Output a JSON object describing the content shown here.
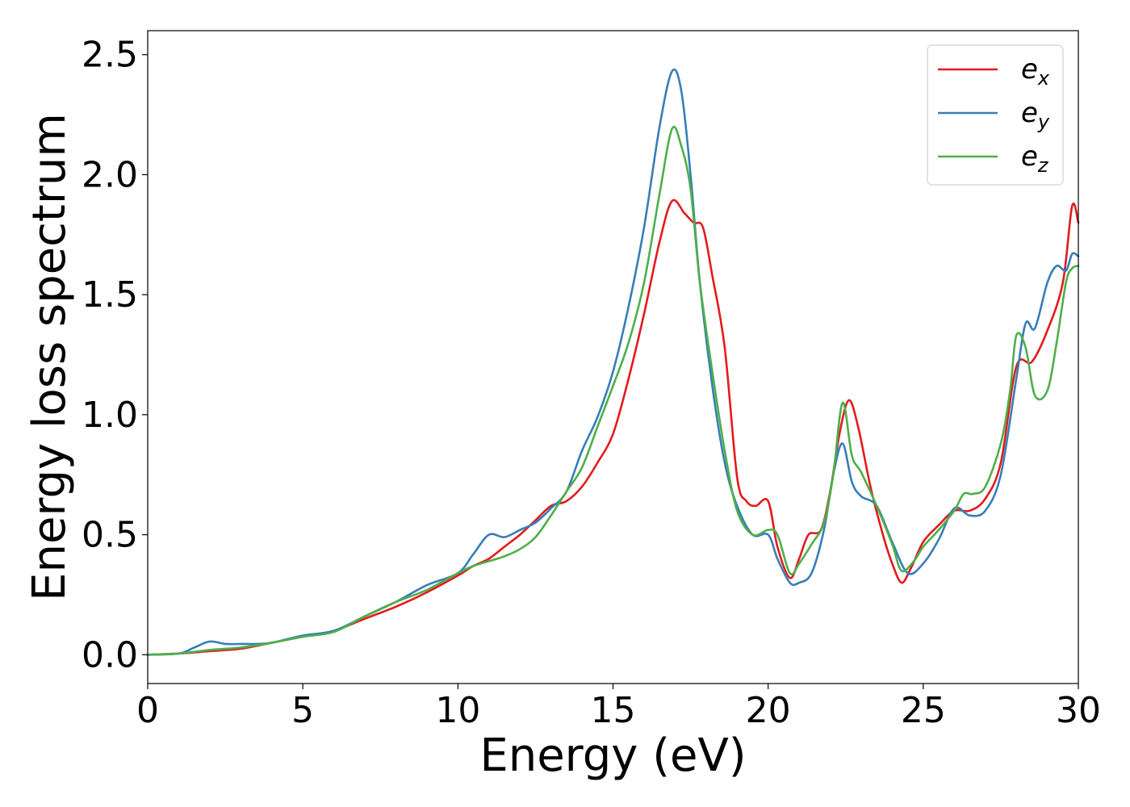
{
  "chart_data": {
    "type": "line",
    "title": "",
    "xlabel": "Energy (eV)",
    "ylabel": "Energy loss spectrum",
    "xlim": [
      0,
      30
    ],
    "ylim": [
      -0.12,
      2.6
    ],
    "xticks": [
      0,
      5,
      10,
      15,
      20,
      25,
      30
    ],
    "xtick_labels": [
      "0",
      "5",
      "10",
      "15",
      "20",
      "25",
      "30"
    ],
    "yticks": [
      0.0,
      0.5,
      1.0,
      1.5,
      2.0,
      2.5
    ],
    "ytick_labels": [
      "0.0",
      "0.5",
      "1.0",
      "1.5",
      "2.0",
      "2.5"
    ],
    "grid": false,
    "legend_position": "top-right",
    "series": [
      {
        "name": "e_x",
        "label_base": "e",
        "label_sub": "x",
        "color": "#e41a1c",
        "x": [
          0,
          1,
          2,
          3,
          4,
          5,
          6,
          7,
          8,
          9,
          10,
          10.5,
          11,
          11.5,
          12,
          12.5,
          13,
          13.5,
          14,
          14.5,
          15,
          15.5,
          16,
          16.5,
          16.9,
          17.3,
          17.6,
          17.9,
          18.2,
          18.6,
          19,
          19.3,
          19.6,
          20,
          20.3,
          20.7,
          21,
          21.3,
          21.7,
          22,
          22.3,
          22.6,
          22.9,
          23.3,
          23.7,
          24,
          24.3,
          24.6,
          25,
          25.5,
          26,
          26.5,
          27,
          27.5,
          28,
          28.5,
          29,
          29.5,
          29.8,
          30
        ],
        "y": [
          0.0,
          0.005,
          0.015,
          0.025,
          0.05,
          0.075,
          0.1,
          0.15,
          0.2,
          0.26,
          0.33,
          0.37,
          0.4,
          0.45,
          0.5,
          0.56,
          0.62,
          0.64,
          0.7,
          0.8,
          0.92,
          1.15,
          1.42,
          1.72,
          1.89,
          1.84,
          1.8,
          1.78,
          1.58,
          1.28,
          0.74,
          0.64,
          0.62,
          0.64,
          0.45,
          0.32,
          0.4,
          0.5,
          0.52,
          0.68,
          0.92,
          1.06,
          0.95,
          0.7,
          0.5,
          0.38,
          0.3,
          0.36,
          0.47,
          0.54,
          0.6,
          0.6,
          0.65,
          0.8,
          1.2,
          1.22,
          1.35,
          1.55,
          1.87,
          1.8
        ]
      },
      {
        "name": "e_y",
        "label_base": "e",
        "label_sub": "y",
        "color": "#377eb8",
        "x": [
          0,
          1,
          1.5,
          2,
          2.5,
          3,
          3.5,
          4,
          5,
          6,
          7,
          8,
          9,
          10,
          10.5,
          11,
          11.5,
          12,
          12.5,
          13,
          13.5,
          14,
          14.5,
          15,
          15.5,
          16,
          16.5,
          16.9,
          17.2,
          17.5,
          17.8,
          18.2,
          18.6,
          19,
          19.5,
          20,
          20.3,
          20.7,
          21,
          21.4,
          21.8,
          22.1,
          22.4,
          22.7,
          23,
          23.5,
          24,
          24.5,
          25,
          25.5,
          26,
          26.5,
          27,
          27.5,
          28,
          28.3,
          28.6,
          29,
          29.3,
          29.6,
          29.8,
          30
        ],
        "y": [
          0.0,
          0.005,
          0.03,
          0.055,
          0.045,
          0.045,
          0.045,
          0.05,
          0.08,
          0.1,
          0.16,
          0.22,
          0.29,
          0.34,
          0.42,
          0.5,
          0.49,
          0.52,
          0.55,
          0.61,
          0.68,
          0.85,
          0.99,
          1.18,
          1.45,
          1.78,
          2.2,
          2.43,
          2.35,
          2.0,
          1.55,
          1.12,
          0.8,
          0.62,
          0.5,
          0.5,
          0.4,
          0.3,
          0.3,
          0.34,
          0.52,
          0.75,
          0.88,
          0.72,
          0.66,
          0.62,
          0.47,
          0.34,
          0.38,
          0.48,
          0.61,
          0.58,
          0.6,
          0.75,
          1.15,
          1.38,
          1.36,
          1.55,
          1.62,
          1.6,
          1.67,
          1.66
        ]
      },
      {
        "name": "e_z",
        "label_base": "e",
        "label_sub": "z",
        "color": "#4daf4a",
        "x": [
          0,
          1,
          2,
          3,
          4,
          5,
          6,
          7,
          8,
          9,
          10,
          10.5,
          11,
          11.5,
          12,
          12.5,
          13,
          13.5,
          14,
          14.5,
          15,
          15.5,
          16,
          16.5,
          16.9,
          17.2,
          17.5,
          17.8,
          18.2,
          18.6,
          19,
          19.5,
          20,
          20.3,
          20.7,
          21,
          21.4,
          21.8,
          22.1,
          22.4,
          22.7,
          23,
          23.5,
          24,
          24.3,
          24.7,
          25,
          25.5,
          26,
          26.3,
          26.6,
          27,
          27.5,
          27.8,
          28,
          28.3,
          28.6,
          29,
          29.3,
          29.6,
          29.8,
          30
        ],
        "y": [
          0.0,
          0.005,
          0.02,
          0.03,
          0.05,
          0.075,
          0.095,
          0.16,
          0.22,
          0.27,
          0.34,
          0.37,
          0.39,
          0.41,
          0.44,
          0.49,
          0.58,
          0.68,
          0.78,
          0.95,
          1.12,
          1.3,
          1.55,
          1.92,
          2.19,
          2.12,
          1.94,
          1.55,
          1.18,
          0.85,
          0.6,
          0.5,
          0.52,
          0.5,
          0.34,
          0.38,
          0.46,
          0.55,
          0.75,
          1.05,
          0.83,
          0.76,
          0.62,
          0.46,
          0.35,
          0.39,
          0.45,
          0.52,
          0.6,
          0.67,
          0.67,
          0.7,
          0.88,
          1.1,
          1.33,
          1.28,
          1.08,
          1.1,
          1.3,
          1.55,
          1.61,
          1.62
        ]
      }
    ]
  }
}
